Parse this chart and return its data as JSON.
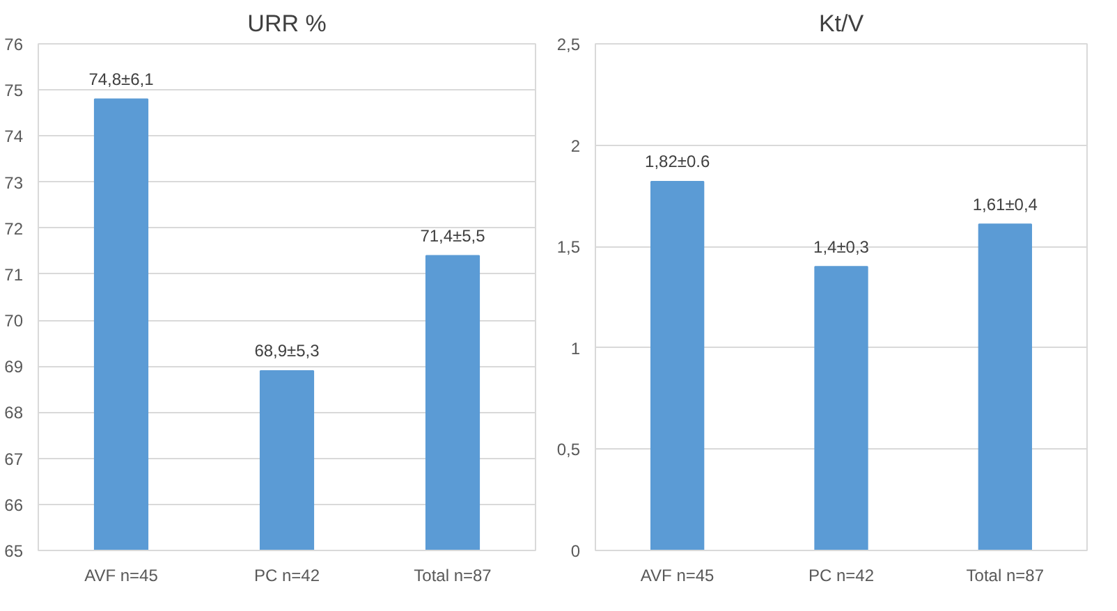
{
  "chart_data": [
    {
      "type": "bar",
      "title": "URR %",
      "categories": [
        "AVF n=45",
        "PC n=42",
        "Total n=87"
      ],
      "values": [
        74.8,
        68.9,
        71.4
      ],
      "color": "#5b9bd5",
      "value_labels": [
        "74,8±6,1",
        "68,9±5,3",
        "71,4±5,5"
      ],
      "ylim": [
        65,
        76
      ],
      "yticks": [
        65,
        66,
        67,
        68,
        69,
        70,
        71,
        72,
        73,
        74,
        75,
        76
      ],
      "grid": "y"
    },
    {
      "type": "bar",
      "title": "Kt/V",
      "categories": [
        "AVF n=45",
        "PC n=42",
        "Total n=87"
      ],
      "values": [
        1.82,
        1.4,
        1.61
      ],
      "color": "#5b9bd5",
      "value_labels": [
        "1,82±0.6",
        "1,4±0,3",
        "1,61±0,4"
      ],
      "ylim": [
        0,
        2.5
      ],
      "yticks": [
        0,
        {
          "value": 0.5,
          "label": "0,5"
        },
        1,
        {
          "value": 1.5,
          "label": "1,5"
        },
        2,
        {
          "value": 2.5,
          "label": "2,5"
        }
      ],
      "grid": "y"
    }
  ]
}
